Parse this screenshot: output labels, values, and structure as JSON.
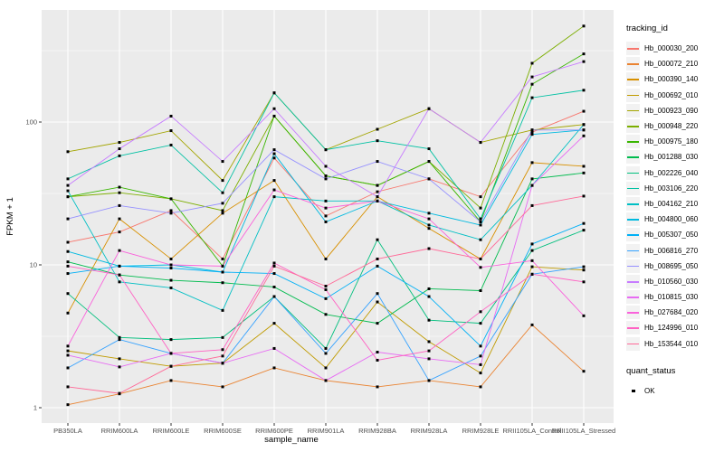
{
  "chart_data": {
    "type": "line",
    "title": "",
    "xlabel": "sample_name",
    "ylabel": "FPKM + 1",
    "y_scale": "log10",
    "y_ticks": [
      1,
      10,
      100
    ],
    "y_minor": [
      3.162,
      31.62,
      316.2
    ],
    "ylim": [
      1,
      600
    ],
    "grid": "on",
    "legend_position": "right",
    "panel_bg": "#ebebeb",
    "grid_color": "#ffffff",
    "point_color": "#000000",
    "categories": [
      "PB350LA",
      "RRIM600LA",
      "RRIM600LE",
      "RRIM600SE",
      "RRIM600PE",
      "RRIM901LA",
      "RRIM928BA",
      "RRIM928LA",
      "RRIM928LE",
      "RRII105LA_Control",
      "RRII105LA_Stressed"
    ],
    "legend_title": "tracking_id",
    "quant_legend": {
      "title": "quant_status",
      "items": [
        "OK"
      ]
    },
    "series": [
      {
        "name": "Hb_000030_200",
        "color": "#F8766D",
        "values": [
          14.4,
          17,
          24,
          11,
          56,
          22,
          32.5,
          40,
          30,
          85,
          119
        ]
      },
      {
        "name": "Hb_000072_210",
        "color": "#EA8331",
        "values": [
          1.05,
          1.25,
          1.55,
          1.4,
          1.9,
          1.55,
          1.4,
          1.55,
          1.4,
          3.8,
          1.8
        ]
      },
      {
        "name": "Hb_000390_140",
        "color": "#D89000",
        "values": [
          4.6,
          21,
          11,
          23,
          39,
          11,
          30,
          18,
          11,
          52,
          49
        ]
      },
      {
        "name": "Hb_000692_010",
        "color": "#C09B00",
        "values": [
          2.5,
          2.2,
          1.95,
          2.05,
          3.9,
          1.9,
          5.5,
          2.9,
          1.75,
          9.7,
          9.2
        ]
      },
      {
        "name": "Hb_000923_090",
        "color": "#A3A500",
        "values": [
          62,
          72,
          87,
          39,
          160,
          64,
          89,
          124,
          72,
          88,
          96
        ]
      },
      {
        "name": "Hb_000948_220",
        "color": "#7CAE00",
        "values": [
          30,
          32,
          29,
          24,
          110,
          42,
          36,
          53,
          25,
          258,
          470
        ]
      },
      {
        "name": "Hb_000975_180",
        "color": "#39B600",
        "values": [
          30,
          35,
          29,
          9.8,
          110,
          42,
          36,
          53,
          20,
          184,
          300
        ]
      },
      {
        "name": "Hb_001288_030",
        "color": "#00BB4E",
        "values": [
          10.5,
          8.5,
          7.8,
          7.5,
          7.0,
          4.5,
          3.9,
          6.8,
          6.6,
          40,
          44
        ]
      },
      {
        "name": "Hb_002226_040",
        "color": "#00BF7D",
        "values": [
          6.3,
          3.1,
          3.0,
          3.1,
          6.0,
          2.6,
          15,
          4.1,
          3.9,
          12.6,
          17.5
        ]
      },
      {
        "name": "Hb_003106_220",
        "color": "#00C1A3",
        "values": [
          40,
          58,
          69,
          32,
          160,
          64,
          74,
          65,
          21,
          148,
          167
        ]
      },
      {
        "name": "Hb_004162_210",
        "color": "#00BFC4",
        "values": [
          33,
          7.6,
          6.9,
          4.8,
          30,
          28,
          28,
          19,
          15,
          36,
          96
        ]
      },
      {
        "name": "Hb_004800_060",
        "color": "#00BAE0",
        "values": [
          12.4,
          9.8,
          10,
          8.9,
          60,
          20,
          28,
          23,
          19,
          82,
          88
        ]
      },
      {
        "name": "Hb_005307_050",
        "color": "#00B0F6",
        "values": [
          8.7,
          9.8,
          9.5,
          8.9,
          8.7,
          5.8,
          9.8,
          6.0,
          2.7,
          14,
          19.5
        ]
      },
      {
        "name": "Hb_006816_270",
        "color": "#35A2FF",
        "values": [
          1.9,
          3.0,
          2.4,
          2.05,
          6.0,
          2.4,
          6.3,
          1.55,
          2.3,
          8.6,
          9.7
        ]
      },
      {
        "name": "Hb_008695_050",
        "color": "#9590FF",
        "values": [
          21,
          26,
          23,
          27,
          64,
          40,
          53,
          40,
          20,
          88,
          88
        ]
      },
      {
        "name": "Hb_010560_030",
        "color": "#C77CFF",
        "values": [
          36,
          65,
          110,
          53,
          124,
          49,
          30,
          124,
          72,
          207,
          265
        ]
      },
      {
        "name": "Hb_010815_030",
        "color": "#E76BF3",
        "values": [
          2.33,
          1.93,
          2.4,
          2.05,
          2.6,
          1.55,
          2.45,
          2.2,
          2.0,
          36,
          80
        ]
      },
      {
        "name": "Hb_027684_020",
        "color": "#FA62DB",
        "values": [
          2.7,
          12.6,
          10,
          9.8,
          33.5,
          25,
          28,
          21,
          9.6,
          10.7,
          4.4
        ]
      },
      {
        "name": "Hb_124996_010",
        "color": "#FF61C3",
        "values": [
          9.8,
          8.5,
          2.4,
          2.55,
          10.3,
          6.7,
          2.15,
          2.5,
          4.7,
          8.6,
          7.6
        ]
      },
      {
        "name": "Hb_153544_010",
        "color": "#FF6A98",
        "values": [
          1.4,
          1.26,
          1.95,
          2.3,
          9.8,
          7.1,
          11,
          13,
          11,
          26,
          30.3
        ]
      }
    ]
  }
}
